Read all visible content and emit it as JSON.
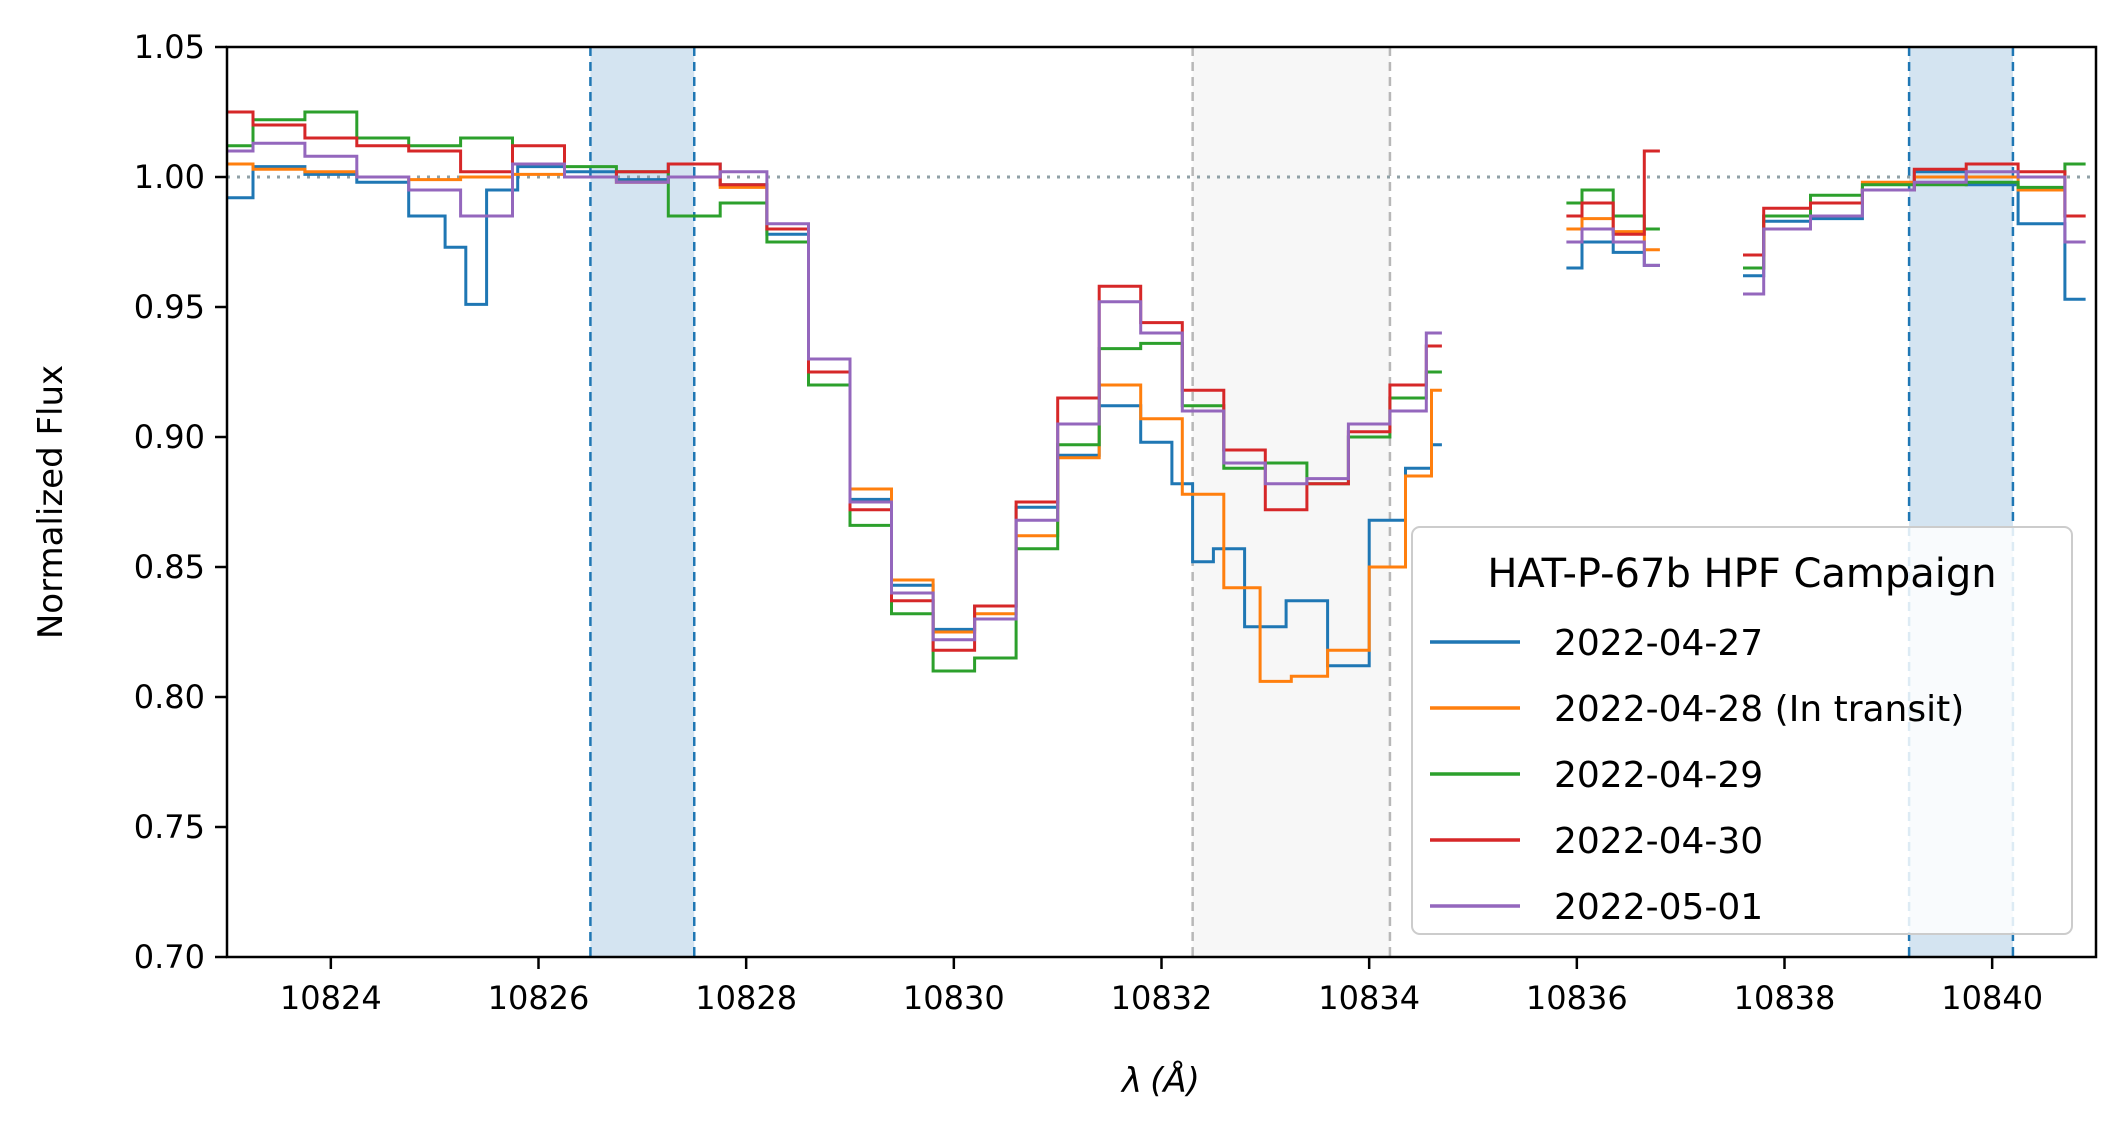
{
  "chart_data": {
    "type": "line",
    "step": true,
    "xlabel_symbol": "λ",
    "xlabel_unit": "(Å)",
    "ylabel": "Normalized Flux",
    "xlim": [
      10823.0,
      10841.0
    ],
    "ylim": [
      0.7,
      1.05
    ],
    "xticks": [
      10824,
      10826,
      10828,
      10830,
      10832,
      10834,
      10836,
      10838,
      10840
    ],
    "yticks": [
      0.7,
      0.75,
      0.8,
      0.85,
      0.9,
      0.95,
      1.0,
      1.05
    ],
    "xtick_labels": [
      "10824",
      "10826",
      "10828",
      "10830",
      "10832",
      "10834",
      "10836",
      "10838",
      "10840"
    ],
    "ytick_labels": [
      "0.70",
      "0.75",
      "0.80",
      "0.85",
      "0.90",
      "0.95",
      "1.00",
      "1.05"
    ],
    "reference_line": {
      "y": 1.0,
      "style": "dotted",
      "color": "#8fa0a6"
    },
    "shaded_bands": [
      {
        "x0": 10826.5,
        "x1": 10827.5,
        "fill": "#d4e4f1",
        "line": "#1f77b4"
      },
      {
        "x0": 10832.3,
        "x1": 10834.2,
        "fill": "#f7f7f7",
        "line": "#b8b8b8"
      },
      {
        "x0": 10839.2,
        "x1": 10840.2,
        "fill": "#d4e4f1",
        "line": "#1f77b4"
      }
    ],
    "legend": {
      "title": "HAT-P-67b HPF Campaign",
      "placement": "lower-right"
    },
    "series": [
      {
        "name": "2022-04-27",
        "color": "#1f77b4",
        "x": [
          10823.0,
          10823.5,
          10824.0,
          10824.5,
          10825.0,
          10825.2,
          10825.4,
          10825.6,
          10826.0,
          10826.5,
          10827.0,
          10827.5,
          10828.0,
          10828.4,
          10828.8,
          10829.2,
          10829.6,
          10830.0,
          10830.4,
          10830.8,
          10831.2,
          10831.6,
          10832.0,
          10832.2,
          10832.4,
          10832.6,
          10833.0,
          10833.4,
          10833.8,
          10834.2,
          10834.5,
          10834.7,
          null,
          10835.9,
          10836.2,
          10836.5,
          10836.8,
          null,
          10837.6,
          10838.0,
          10838.5,
          10839.0,
          10839.5,
          10840.0,
          10840.5,
          10840.9
        ],
        "y": [
          0.992,
          1.004,
          1.001,
          0.998,
          0.985,
          0.973,
          0.951,
          0.995,
          1.004,
          1.002,
          0.999,
          1.005,
          0.997,
          0.978,
          0.93,
          0.876,
          0.843,
          0.826,
          0.835,
          0.873,
          0.893,
          0.912,
          0.898,
          0.882,
          0.852,
          0.857,
          0.827,
          0.837,
          0.812,
          0.868,
          0.888,
          0.897,
          null,
          0.965,
          0.975,
          0.971,
          0.966,
          null,
          0.962,
          0.983,
          0.984,
          0.995,
          1.002,
          0.997,
          0.982,
          0.953
        ]
      },
      {
        "name": "2022-04-28 (In transit)",
        "color": "#ff7f0e",
        "x": [
          10823.0,
          10823.5,
          10824.0,
          10824.5,
          10825.0,
          10825.5,
          10826.0,
          10826.5,
          10827.0,
          10827.5,
          10828.0,
          10828.4,
          10828.8,
          10829.2,
          10829.6,
          10830.0,
          10830.4,
          10830.8,
          10831.2,
          10831.6,
          10832.0,
          10832.4,
          10832.8,
          10833.1,
          10833.4,
          10833.8,
          10834.2,
          10834.5,
          10834.7,
          null,
          10835.9,
          10836.2,
          10836.5,
          10836.8,
          null,
          10837.6,
          10838.0,
          10838.5,
          10839.0,
          10839.5,
          10840.0,
          10840.5,
          10840.9
        ],
        "y": [
          1.005,
          1.003,
          1.002,
          1.0,
          0.999,
          1.0,
          1.001,
          1.0,
          0.998,
          1.0,
          0.996,
          0.98,
          0.93,
          0.88,
          0.845,
          0.825,
          0.832,
          0.862,
          0.892,
          0.92,
          0.907,
          0.878,
          0.842,
          0.806,
          0.808,
          0.818,
          0.85,
          0.885,
          0.918,
          null,
          0.98,
          0.984,
          0.979,
          0.972,
          null,
          0.965,
          0.985,
          0.99,
          0.998,
          1.0,
          1.0,
          0.995,
          0.985
        ]
      },
      {
        "name": "2022-04-29",
        "color": "#2ca02c",
        "x": [
          10823.0,
          10823.5,
          10824.0,
          10824.5,
          10825.0,
          10825.5,
          10826.0,
          10826.5,
          10827.0,
          10827.5,
          10828.0,
          10828.4,
          10828.8,
          10829.2,
          10829.6,
          10830.0,
          10830.4,
          10830.8,
          10831.2,
          10831.6,
          10832.0,
          10832.4,
          10832.8,
          10833.2,
          10833.6,
          10834.0,
          10834.4,
          10834.7,
          null,
          10835.9,
          10836.2,
          10836.5,
          10836.8,
          null,
          10837.6,
          10838.0,
          10838.5,
          10839.0,
          10839.5,
          10840.0,
          10840.5,
          10840.9
        ],
        "y": [
          1.012,
          1.022,
          1.025,
          1.015,
          1.012,
          1.015,
          1.005,
          1.004,
          1.002,
          0.985,
          0.99,
          0.975,
          0.92,
          0.866,
          0.832,
          0.81,
          0.815,
          0.857,
          0.897,
          0.934,
          0.936,
          0.912,
          0.888,
          0.89,
          0.882,
          0.9,
          0.915,
          0.925,
          null,
          0.99,
          0.995,
          0.985,
          0.98,
          null,
          0.965,
          0.985,
          0.993,
          0.997,
          0.997,
          0.998,
          0.996,
          1.005
        ]
      },
      {
        "name": "2022-04-30",
        "color": "#d62728",
        "x": [
          10823.0,
          10823.5,
          10824.0,
          10824.5,
          10825.0,
          10825.5,
          10826.0,
          10826.5,
          10827.0,
          10827.5,
          10828.0,
          10828.4,
          10828.8,
          10829.2,
          10829.6,
          10830.0,
          10830.4,
          10830.8,
          10831.2,
          10831.6,
          10832.0,
          10832.4,
          10832.8,
          10833.2,
          10833.6,
          10834.0,
          10834.4,
          10834.7,
          null,
          10835.9,
          10836.2,
          10836.5,
          10836.8,
          null,
          10837.6,
          10838.0,
          10838.5,
          10839.0,
          10839.5,
          10840.0,
          10840.5,
          10840.9
        ],
        "y": [
          1.025,
          1.02,
          1.015,
          1.012,
          1.01,
          1.002,
          1.012,
          1.0,
          1.002,
          1.005,
          0.997,
          0.98,
          0.925,
          0.872,
          0.837,
          0.818,
          0.835,
          0.875,
          0.915,
          0.958,
          0.944,
          0.918,
          0.895,
          0.872,
          0.882,
          0.902,
          0.92,
          0.935,
          null,
          0.985,
          0.99,
          0.978,
          1.01,
          null,
          0.97,
          0.988,
          0.99,
          0.995,
          1.003,
          1.005,
          1.002,
          0.985
        ]
      },
      {
        "name": "2022-05-01",
        "color": "#9467bd",
        "x": [
          10823.0,
          10823.5,
          10824.0,
          10824.5,
          10825.0,
          10825.5,
          10826.0,
          10826.5,
          10827.0,
          10827.5,
          10828.0,
          10828.4,
          10828.8,
          10829.2,
          10829.6,
          10830.0,
          10830.4,
          10830.8,
          10831.2,
          10831.6,
          10832.0,
          10832.4,
          10832.8,
          10833.2,
          10833.6,
          10834.0,
          10834.4,
          10834.7,
          null,
          10835.9,
          10836.2,
          10836.5,
          10836.8,
          null,
          10837.6,
          10838.0,
          10838.5,
          10839.0,
          10839.5,
          10840.0,
          10840.5,
          10840.9
        ],
        "y": [
          1.01,
          1.013,
          1.008,
          1.0,
          0.995,
          0.985,
          1.005,
          1.0,
          0.998,
          1.0,
          1.002,
          0.982,
          0.93,
          0.875,
          0.84,
          0.822,
          0.83,
          0.868,
          0.905,
          0.952,
          0.94,
          0.91,
          0.89,
          0.882,
          0.884,
          0.905,
          0.91,
          0.94,
          null,
          0.975,
          0.98,
          0.975,
          0.966,
          null,
          0.955,
          0.98,
          0.985,
          0.995,
          0.998,
          1.002,
          1.0,
          0.975
        ]
      }
    ]
  }
}
